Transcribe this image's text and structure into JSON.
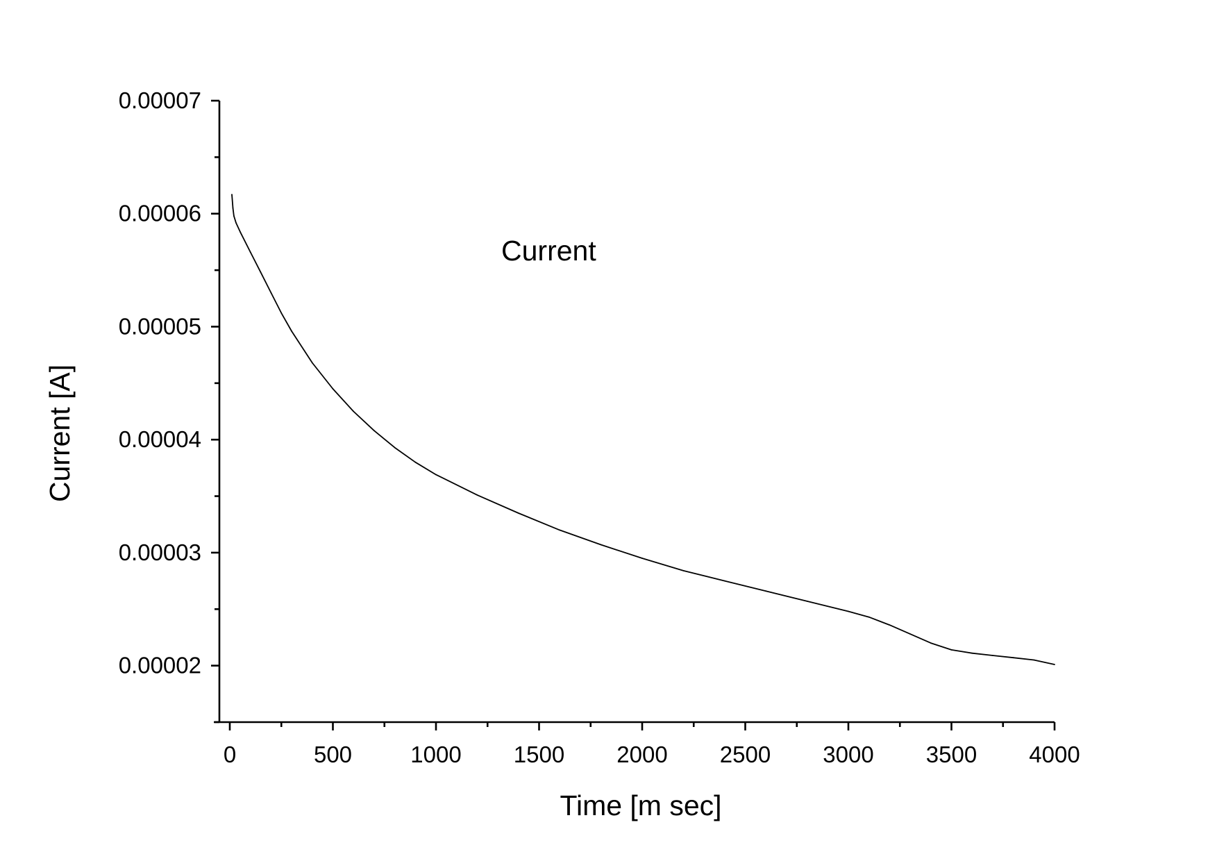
{
  "chart_data": {
    "type": "line",
    "title": "",
    "xlabel": "Time [m sec]",
    "ylabel": "Current [A]",
    "annotation": "Current",
    "xlim": [
      -50,
      4000
    ],
    "ylim": [
      1.5e-05,
      7e-05
    ],
    "xticks": [
      0,
      500,
      1000,
      1500,
      2000,
      2500,
      3000,
      3500,
      4000
    ],
    "xtick_labels": [
      "0",
      "500",
      "1000",
      "1500",
      "2000",
      "2500",
      "3000",
      "3500",
      "4000"
    ],
    "xminor_ticks": [
      250,
      750,
      1250,
      1750,
      2250,
      2750,
      3250,
      3750
    ],
    "yticks": [
      2e-05,
      3e-05,
      4e-05,
      5e-05,
      6e-05,
      7e-05
    ],
    "ytick_labels": [
      "0.00002",
      "0.00003",
      "0.00004",
      "0.00005",
      "0.00006",
      "0.00007"
    ],
    "yminor_ticks": [
      1.5e-05,
      2.5e-05,
      3.5e-05,
      4.5e-05,
      5.5e-05,
      6.5e-05
    ],
    "grid": false,
    "line_color": "#000000",
    "series": [
      {
        "x": [
          10,
          15,
          20,
          30,
          50,
          100,
          150,
          200,
          250,
          300,
          400,
          500,
          600,
          700,
          800,
          900,
          1000,
          1200,
          1400,
          1600,
          1800,
          2000,
          2200,
          2400,
          2600,
          2800,
          3000,
          3100,
          3200,
          3300,
          3400,
          3500,
          3600,
          3700,
          3800,
          3900,
          4000
        ],
        "y": [
          6.17e-05,
          6.05e-05,
          5.98e-05,
          5.92e-05,
          5.84e-05,
          5.66e-05,
          5.48e-05,
          5.3e-05,
          5.12e-05,
          4.96e-05,
          4.68e-05,
          4.45e-05,
          4.25e-05,
          4.08e-05,
          3.93e-05,
          3.8e-05,
          3.69e-05,
          3.51e-05,
          3.35e-05,
          3.2e-05,
          3.07e-05,
          2.95e-05,
          2.84e-05,
          2.75e-05,
          2.66e-05,
          2.57e-05,
          2.48e-05,
          2.43e-05,
          2.36e-05,
          2.28e-05,
          2.2e-05,
          2.14e-05,
          2.11e-05,
          2.09e-05,
          2.07e-05,
          2.05e-05,
          2.01e-05
        ]
      }
    ]
  }
}
